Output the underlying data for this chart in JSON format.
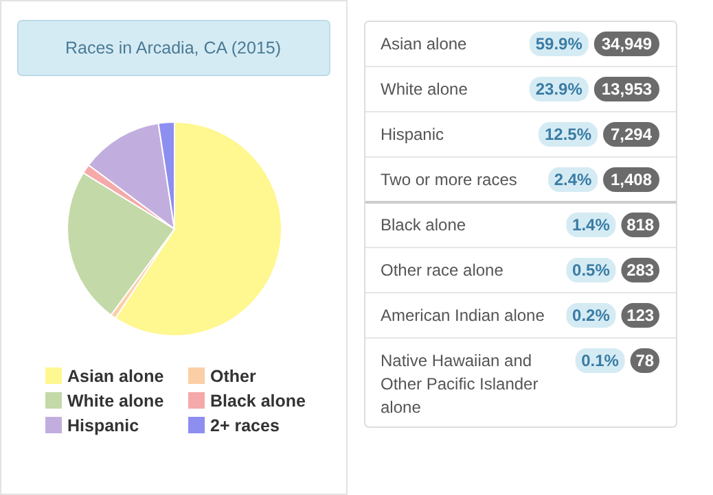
{
  "chart_data": [
    {
      "type": "pie",
      "title": "Races in Arcadia, CA (2015)",
      "categories": [
        "Asian alone",
        "Other",
        "White alone",
        "Black alone",
        "Hispanic",
        "2+ races"
      ],
      "values": [
        59.3,
        0.8,
        23.7,
        1.4,
        12.4,
        2.4
      ],
      "colors": [
        "#fff78f",
        "#fbcfa6",
        "#c3d9a8",
        "#f5a9a9",
        "#c2aede",
        "#8c8ef0"
      ],
      "legend": "bottom"
    },
    {
      "type": "other",
      "annotations": [
        "Asian alone",
        "59.9%",
        "34,949",
        "White alone",
        "23.9%",
        "13,953",
        "Hispanic",
        "12.5%",
        "7,294",
        "Two or more races",
        "2.4%",
        "1,408",
        "Black alone",
        "1.4%",
        "818",
        "Other race alone",
        "0.5%",
        "283",
        "American Indian alone",
        "0.2%",
        "123",
        "Native Hawaiian and Other Pacific Islander alone",
        "0.1%",
        "78"
      ]
    }
  ]
}
